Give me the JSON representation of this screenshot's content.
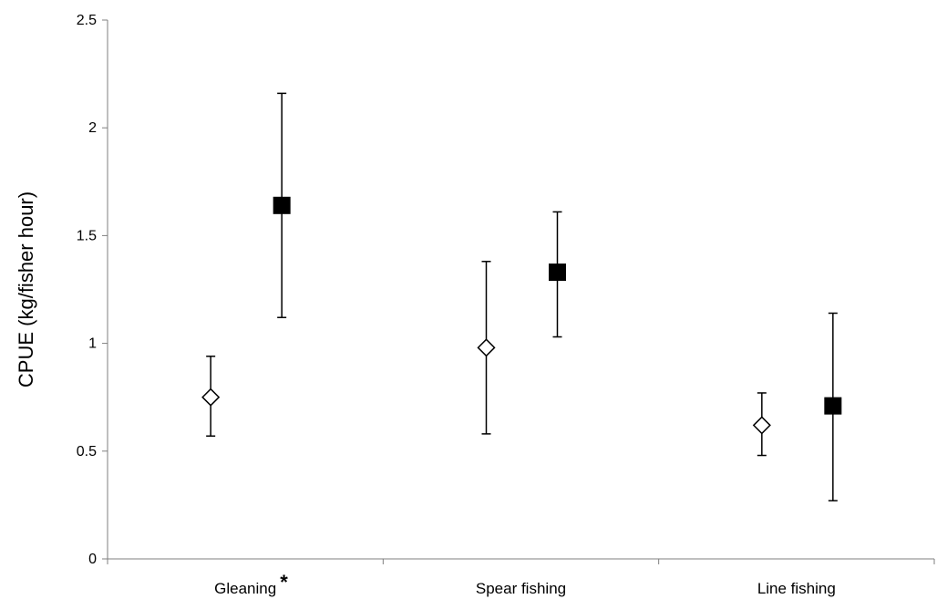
{
  "chart_data": {
    "type": "scatter",
    "ylabel": "CPUE (kg/fisher hour)",
    "xlabel": "",
    "ylim": [
      0,
      2.5
    ],
    "yticks": [
      0,
      0.5,
      1,
      1.5,
      2,
      2.5
    ],
    "ytick_labels": [
      "0",
      "0.5",
      "1",
      "1.5",
      "2",
      "2.5"
    ],
    "categories": [
      "Gleaning",
      "Spear fishing",
      "Line fishing"
    ],
    "category_annotations": [
      "*",
      "",
      ""
    ],
    "grid": false,
    "legend": "none",
    "series": [
      {
        "marker": "open-diamond",
        "color": "#000000",
        "fill": "#ffffff",
        "values": [
          0.75,
          0.98,
          0.62
        ],
        "error_low": [
          0.57,
          0.58,
          0.48
        ],
        "error_high": [
          0.94,
          1.38,
          0.77
        ]
      },
      {
        "marker": "filled-square",
        "color": "#000000",
        "fill": "#000000",
        "values": [
          1.64,
          1.33,
          0.71
        ],
        "error_low": [
          1.12,
          1.03,
          0.27
        ],
        "error_high": [
          2.16,
          1.61,
          1.14
        ]
      }
    ]
  }
}
